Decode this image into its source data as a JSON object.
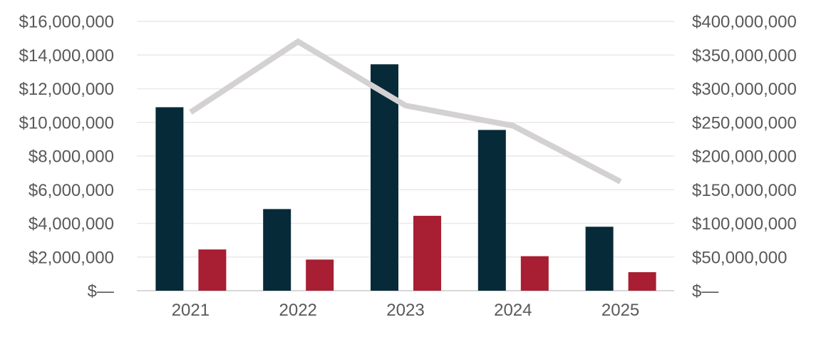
{
  "chart_data": {
    "type": "combo",
    "title": "",
    "legend": "none",
    "grid": true,
    "background": "#ffffff",
    "text_color": "#595959",
    "gridline_color": "#e9e9e9",
    "baseline_color": "#d8d8d8",
    "categories": [
      "2021",
      "2022",
      "2023",
      "2024",
      "2025"
    ],
    "series": [
      {
        "name": "dark-navy-bars",
        "type": "bar",
        "axis": "left",
        "color": "#072a38",
        "values": [
          10900000,
          4850000,
          13450000,
          9550000,
          3800000
        ]
      },
      {
        "name": "crimson-bars",
        "type": "bar",
        "axis": "left",
        "color": "#a81e32",
        "values": [
          2450000,
          1850000,
          4450000,
          2050000,
          1100000
        ]
      },
      {
        "name": "gray-trend-line",
        "type": "line",
        "axis": "right",
        "color": "#d4d1d2",
        "values": [
          265000000,
          370000000,
          275000000,
          245000000,
          162000000
        ]
      }
    ],
    "left_axis": {
      "min": 0,
      "max": 16000000,
      "step": 2000000,
      "tick_labels": [
        "$16,000,000",
        "$14,000,000",
        "$12,000,000",
        "$10,000,000",
        "$8,000,000",
        "$6,000,000",
        "$4,000,000",
        "$2,000,000",
        "$—"
      ]
    },
    "right_axis": {
      "min": 0,
      "max": 400000000,
      "step": 50000000,
      "tick_labels": [
        "$400,000,000",
        "$350,000,000",
        "$300,000,000",
        "$250,000,000",
        "$200,000,000",
        "$150,000,000",
        "$100,000,000",
        "$50,000,000",
        "$—"
      ]
    },
    "x_axis": {
      "labels": [
        "2021",
        "2022",
        "2023",
        "2024",
        "2025"
      ]
    }
  }
}
